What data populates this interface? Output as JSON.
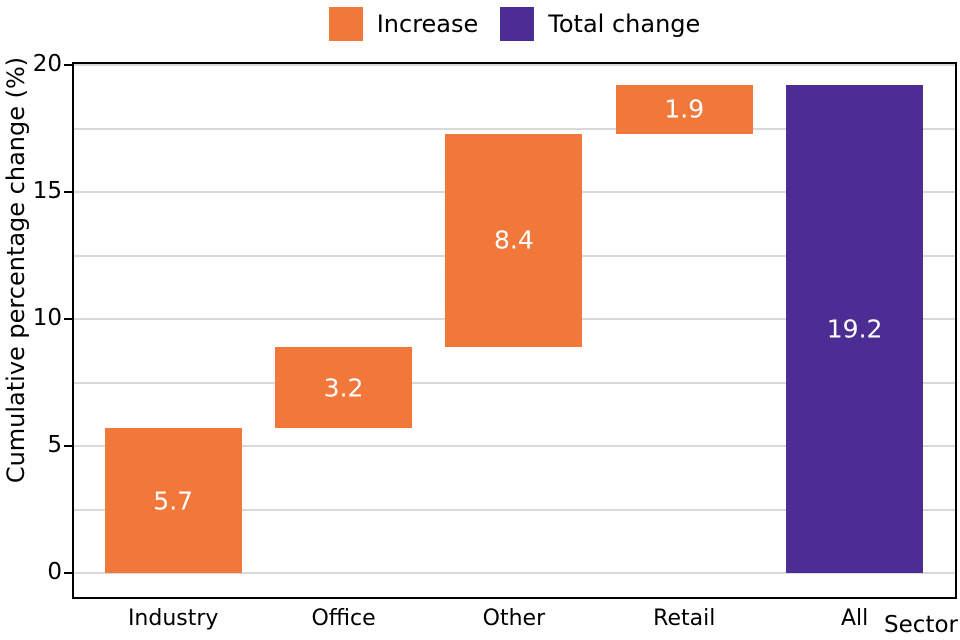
{
  "colors": {
    "increase": "#F2773A",
    "total": "#4B2D93",
    "gridline": "#D9D9D9",
    "frame": "#000000",
    "axis_text": "#000000",
    "bar_label_text": "#FFFFFF",
    "background": "#FFFFFF"
  },
  "legend": {
    "items": [
      {
        "label": "Increase",
        "color_key": "increase"
      },
      {
        "label": "Total change",
        "color_key": "total"
      }
    ]
  },
  "axes": {
    "y_label": "Cumulative percentage change (%)",
    "x_label": "Sector",
    "y_tick_labels": [
      "0",
      "5",
      "10",
      "15",
      "20"
    ],
    "y_tick_values": [
      0,
      5,
      10,
      15,
      20
    ]
  },
  "chart_data": {
    "type": "bar",
    "subtype": "waterfall",
    "title": "",
    "xlabel": "Sector",
    "ylabel": "Cumulative percentage change (%)",
    "ylim": [
      0,
      20
    ],
    "grid": true,
    "gridline_step": 2.5,
    "y_tick_step": 5,
    "legend_position": "top-center",
    "categories": [
      "Industry",
      "Office",
      "Other",
      "Retail",
      "All"
    ],
    "series": [
      {
        "name": "Increase",
        "values": [
          5.7,
          3.2,
          8.4,
          1.9,
          null
        ]
      },
      {
        "name": "Total change",
        "values": [
          null,
          null,
          null,
          null,
          19.2
        ]
      }
    ],
    "bars": [
      {
        "category": "Industry",
        "start": 0,
        "end": 5.7,
        "value": 5.7,
        "label": "5.7",
        "kind": "increase"
      },
      {
        "category": "Office",
        "start": 5.7,
        "end": 8.9,
        "value": 3.2,
        "label": "3.2",
        "kind": "increase"
      },
      {
        "category": "Other",
        "start": 8.9,
        "end": 17.3,
        "value": 8.4,
        "label": "8.4",
        "kind": "increase"
      },
      {
        "category": "Retail",
        "start": 17.3,
        "end": 19.2,
        "value": 1.9,
        "label": "1.9",
        "kind": "increase"
      },
      {
        "category": "All",
        "start": 0,
        "end": 19.2,
        "value": 19.2,
        "label": "19.2",
        "kind": "total"
      }
    ]
  }
}
